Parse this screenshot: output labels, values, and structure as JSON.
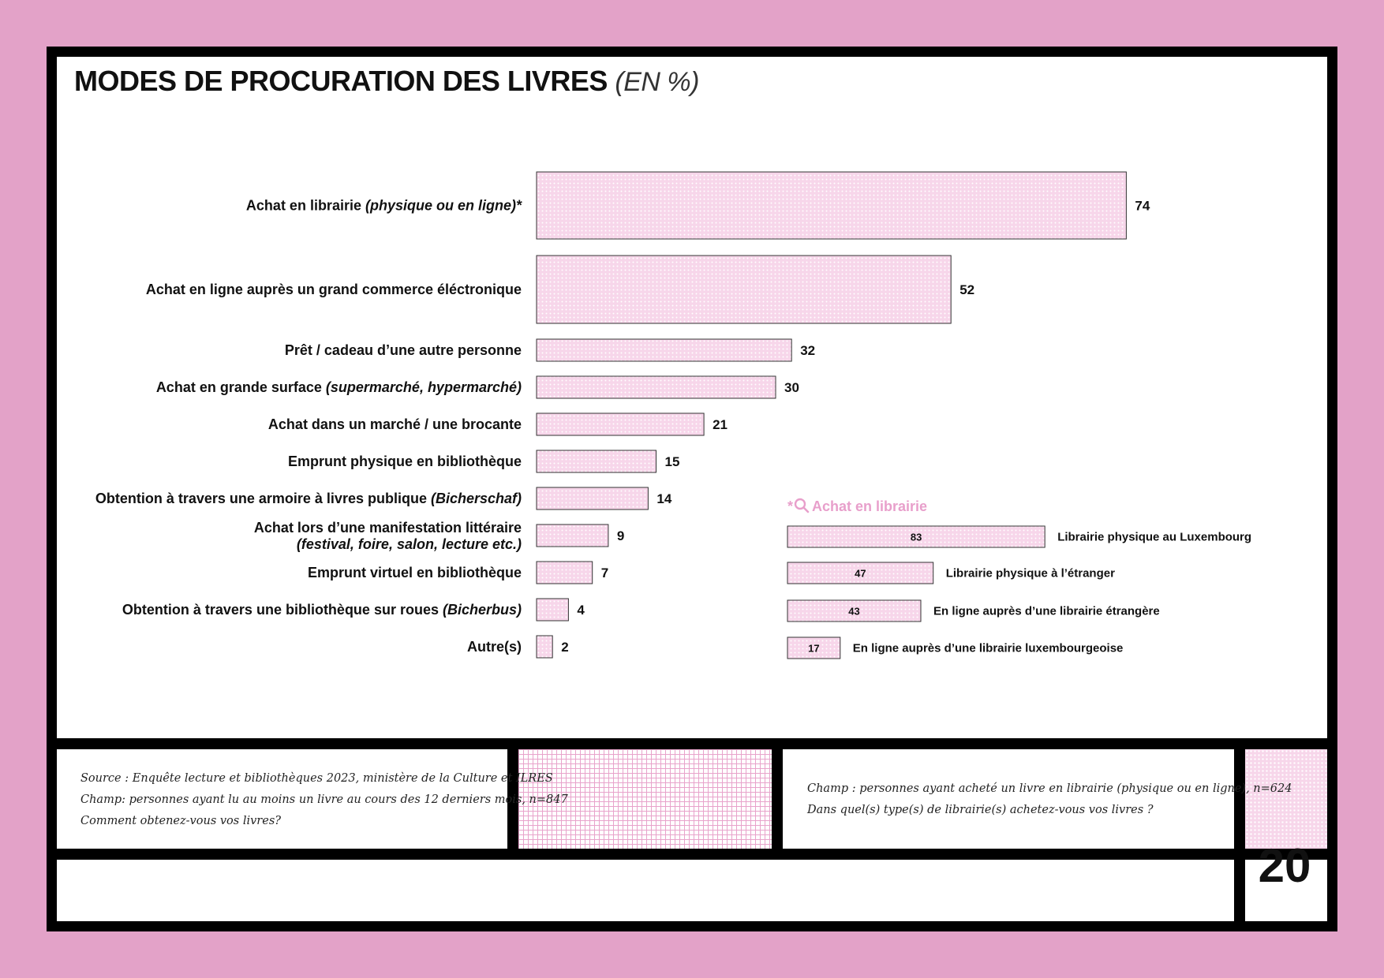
{
  "title": "MODES DE PROCURATION DES LIVRES",
  "title_unit": "(EN %)",
  "chart_data": [
    {
      "type": "bar",
      "orientation": "horizontal",
      "title": "MODES DE PROCURATION DES LIVRES (EN %)",
      "categories": [
        [
          "Achat en librairie ",
          "(physique ou en ligne)*"
        ],
        [
          "Achat en ligne auprès un grand commerce éléctronique"
        ],
        [
          "Prêt / cadeau d’une autre personne"
        ],
        [
          "Achat en grande surface ",
          "(supermarché, hypermarché)"
        ],
        [
          "Achat dans un marché / une brocante"
        ],
        [
          "Emprunt physique en bibliothèque"
        ],
        [
          "Obtention à travers une armoire à livres publique ",
          "(Bicherschaf)"
        ],
        [
          "Achat lors d’une manifestation littéraire",
          "(festival, foire, salon, lecture etc.)"
        ],
        [
          "Emprunt virtuel en bibliothèque"
        ],
        [
          "Obtention à travers une bibliothèque sur roues ",
          "(Bicherbus)"
        ],
        [
          "Autre(s)"
        ]
      ],
      "values": [
        74,
        52,
        32,
        30,
        21,
        15,
        14,
        9,
        7,
        4,
        2
      ],
      "xlim": [
        0,
        100
      ],
      "grid": false,
      "bar_color": "#f7d6ea"
    },
    {
      "type": "bar",
      "orientation": "horizontal",
      "title": "*Achat en librairie",
      "categories": [
        "Librairie physique au Luxembourg",
        "Librairie physique à l’étranger",
        "En ligne auprès d’une librairie étrangère",
        "En ligne auprès d’une librairie luxembourgeoise"
      ],
      "values": [
        83,
        47,
        43,
        17
      ],
      "xlim": [
        0,
        100
      ],
      "grid": false,
      "accent_color": "#e89fcb"
    }
  ],
  "inset_title_star": "*",
  "inset_title_icon": "search-icon",
  "inset_title": "Achat en librairie",
  "footnote_left": [
    "Source : Enquête lecture et bibliothèques 2023, ministère de la Culture et ILRES",
    "Champ: personnes ayant lu au moins un livre au cours des 12 derniers mois, n=847",
    "Comment obtenez-vous vos livres?"
  ],
  "footnote_right": [
    "Champ : personnes ayant acheté un livre en librairie (physique ou en ligne), n=624",
    "Dans quel(s) type(s) de librairie(s) achetez-vous vos livres ?"
  ],
  "page_number": "20"
}
